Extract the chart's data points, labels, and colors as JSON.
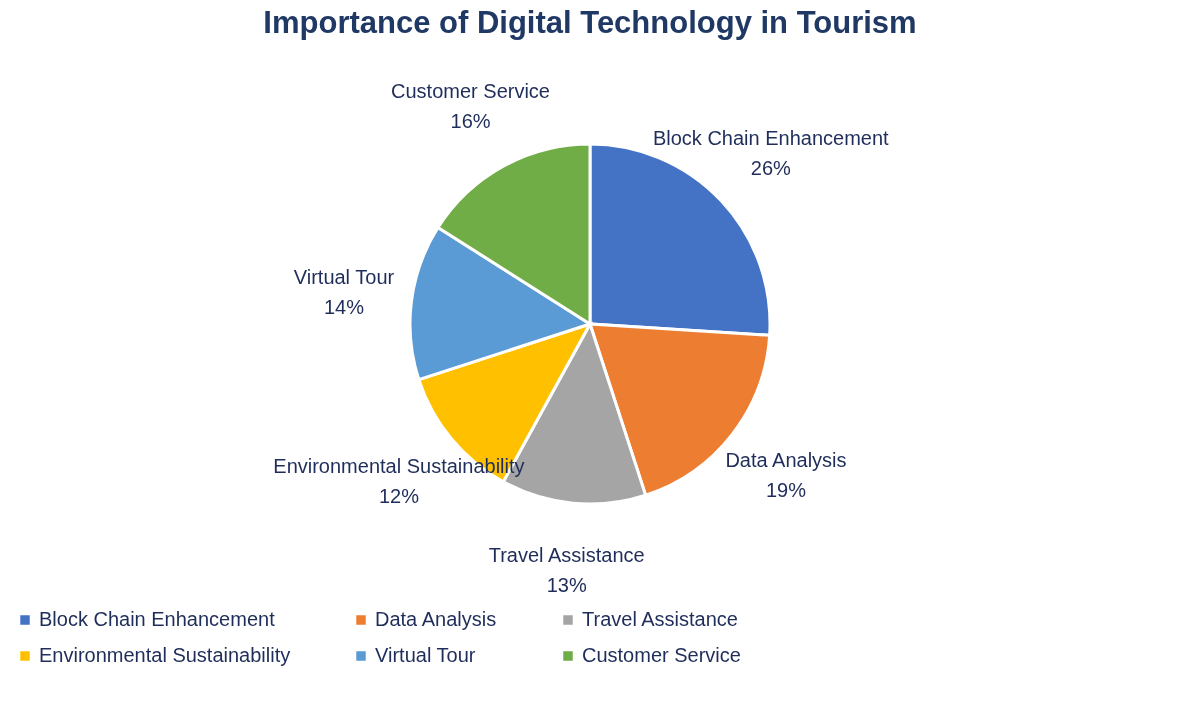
{
  "chart_data": {
    "type": "pie",
    "title": "Importance of Digital Technology in Tourism",
    "categories": [
      "Block Chain Enhancement",
      "Data Analysis",
      "Travel Assistance",
      "Environmental Sustainability",
      "Virtual Tour",
      "Customer Service"
    ],
    "values": [
      26,
      19,
      13,
      12,
      14,
      16
    ],
    "value_labels": [
      "26%",
      "19%",
      "13%",
      "12%",
      "14%",
      "16%"
    ],
    "colors": [
      "#4472c4",
      "#ed7d31",
      "#a5a5a5",
      "#ffc000",
      "#5b9bd5",
      "#70ad47"
    ],
    "legend": "bottom"
  }
}
